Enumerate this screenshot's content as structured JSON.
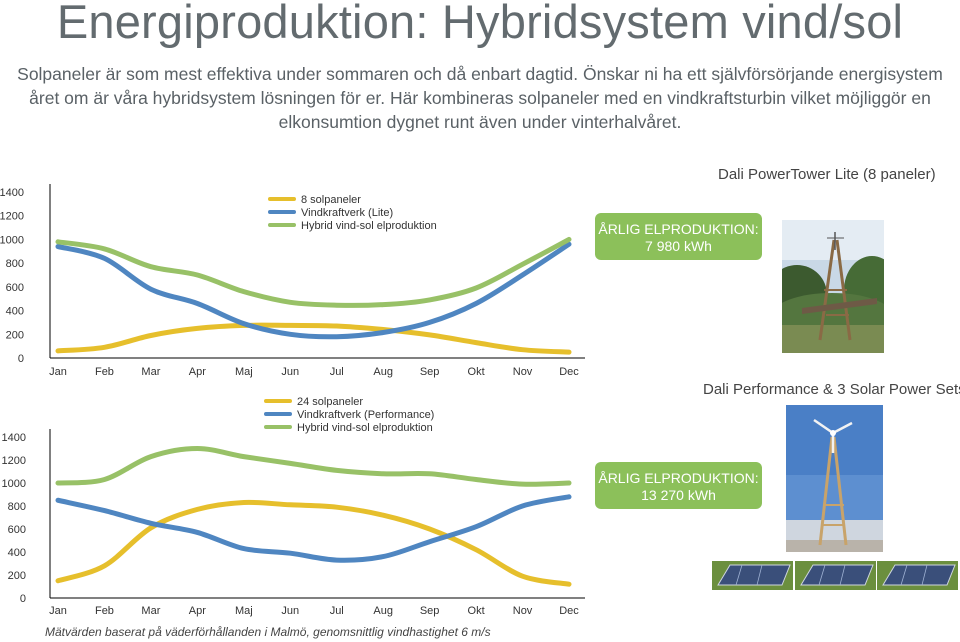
{
  "page": {
    "title": "Energiproduktion: Hybridsystem vind/sol",
    "intro_lines": [
      "Solpaneler är som mest effektiva under sommaren och då enbart dagtid. Önskar ni ha ett självförsörjande energisystem",
      "året om är våra hybridsystem lösningen för er. Här kombineras solpaneler med en vindkraftsturbin vilket möjliggör en",
      "elkonsumtion dygnet runt även under vinterhalvåret."
    ],
    "footnote": "Mätvärden baserat på väderförhållanden i Malmö, genomsnittlig vindhastighet 6 m/s"
  },
  "colors": {
    "solar": "#e6bf2c",
    "wind": "#4f86c1",
    "hybrid": "#98c167",
    "badge": "#8cc05a"
  },
  "panels": [
    {
      "product": "Dali PowerTower Lite (8 paneler)",
      "badge_line1": "ÅRLIG ELPRODUKTION:",
      "badge_line2": "7 980 kWh"
    },
    {
      "product": "Dali Performance & 3 Solar Power Sets",
      "badge_line1": "ÅRLIG ELPRODUKTION:",
      "badge_line2": "13 270 kWh"
    }
  ],
  "chart_data": [
    {
      "type": "line",
      "categories": [
        "Jan",
        "Feb",
        "Mar",
        "Apr",
        "Maj",
        "Jun",
        "Jul",
        "Aug",
        "Sep",
        "Okt",
        "Nov",
        "Dec"
      ],
      "y_ticks": [
        0,
        200,
        400,
        600,
        800,
        1000,
        1200,
        1400
      ],
      "ylim": [
        0,
        1400
      ],
      "legend_position": "top-center",
      "grid": false,
      "series": [
        {
          "name": "8 solpaneler",
          "color": "#e6bf2c",
          "values": [
            60,
            90,
            190,
            250,
            275,
            275,
            270,
            240,
            195,
            130,
            70,
            50
          ]
        },
        {
          "name": "Vindkraftverk (Lite)",
          "color": "#4f86c1",
          "values": [
            940,
            840,
            580,
            460,
            290,
            200,
            180,
            215,
            300,
            460,
            700,
            960
          ]
        },
        {
          "name": "Hybrid vind-sol elproduktion",
          "color": "#98c167",
          "values": [
            980,
            920,
            770,
            700,
            560,
            470,
            445,
            450,
            490,
            590,
            790,
            1000
          ]
        }
      ]
    },
    {
      "type": "line",
      "categories": [
        "Jan",
        "Feb",
        "Mar",
        "Apr",
        "Maj",
        "Jun",
        "Jul",
        "Aug",
        "Sep",
        "Okt",
        "Nov",
        "Dec"
      ],
      "y_ticks": [
        0,
        200,
        400,
        600,
        800,
        1000,
        1200,
        1400
      ],
      "ylim": [
        0,
        1400
      ],
      "legend_position": "top-center",
      "grid": false,
      "series": [
        {
          "name": "24 solpaneler",
          "color": "#e6bf2c",
          "values": [
            150,
            280,
            610,
            770,
            830,
            810,
            790,
            720,
            600,
            420,
            190,
            120
          ]
        },
        {
          "name": "Vindkraftverk (Performance)",
          "color": "#4f86c1",
          "values": [
            850,
            760,
            650,
            570,
            430,
            390,
            330,
            360,
            490,
            620,
            800,
            880
          ]
        },
        {
          "name": "Hybrid vind-sol elproduktion",
          "color": "#98c167",
          "values": [
            1000,
            1030,
            1230,
            1300,
            1230,
            1170,
            1110,
            1080,
            1080,
            1030,
            990,
            1000
          ]
        }
      ]
    }
  ]
}
